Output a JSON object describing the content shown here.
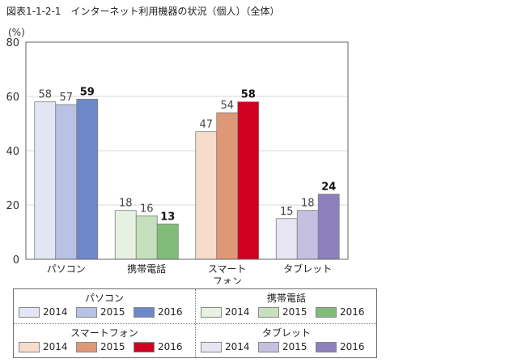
{
  "title": "図表1-1-2-1　インターネット利用機器の状況（個人）（全体）",
  "chart_data": {
    "type": "bar",
    "ylabel": "(%)",
    "ylim": [
      0,
      80
    ],
    "yticks": [
      0,
      20,
      40,
      60,
      80
    ],
    "categories": [
      "パソコン",
      "携帯電話",
      "スマート\nフォン",
      "タブレット"
    ],
    "years": [
      "2014",
      "2015",
      "2016"
    ],
    "values": {
      "パソコン": [
        58,
        57,
        59
      ],
      "携帯電話": [
        18,
        16,
        13
      ],
      "スマートフォン": [
        47,
        54,
        58
      ],
      "タブレット": [
        15,
        18,
        24
      ]
    },
    "colors": {
      "パソコン": [
        "#e2e6f4",
        "#b9c1e4",
        "#6d88c9"
      ],
      "携帯電話": [
        "#e7f1e1",
        "#c6dfbc",
        "#81bc7b"
      ],
      "スマートフォン": [
        "#f7dccb",
        "#de9878",
        "#cf0020"
      ],
      "タブレット": [
        "#e7e5f2",
        "#c5bfe0",
        "#8d80bd"
      ]
    },
    "grid": true
  },
  "legend": {
    "groups": [
      {
        "name": "パソコン",
        "years": [
          "2014",
          "2015",
          "2016"
        ]
      },
      {
        "name": "携帯電話",
        "years": [
          "2014",
          "2015",
          "2016"
        ]
      },
      {
        "name": "スマートフォン",
        "years": [
          "2014",
          "2015",
          "2016"
        ]
      },
      {
        "name": "タブレット",
        "years": [
          "2014",
          "2015",
          "2016"
        ]
      }
    ]
  }
}
